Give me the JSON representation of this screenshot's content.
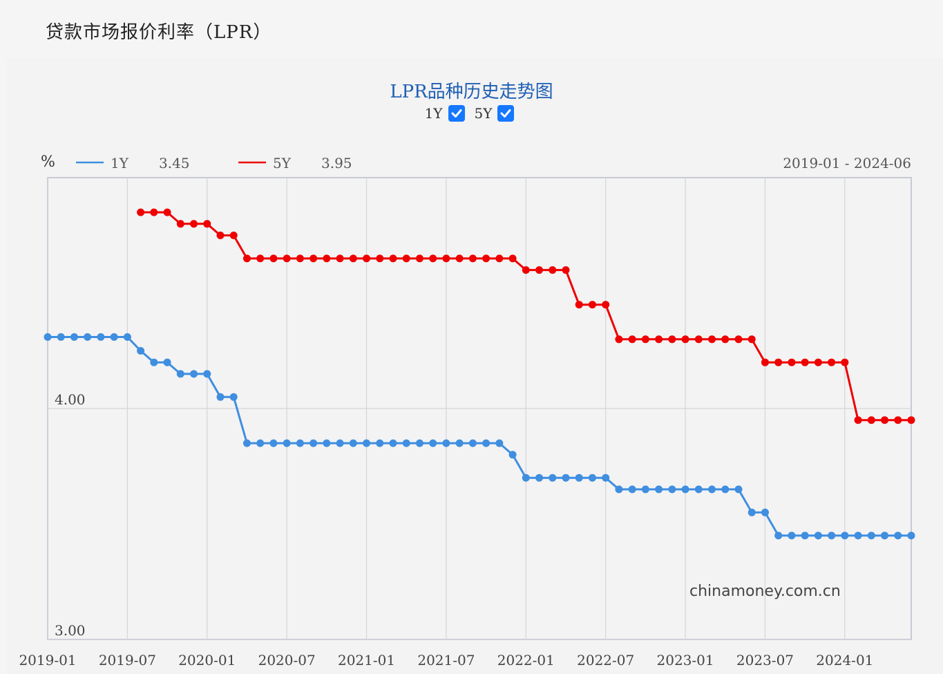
{
  "page": {
    "title": "贷款市场报价利率（LPR）"
  },
  "controls": {
    "toggles": [
      {
        "label": "1Y",
        "checked": true
      },
      {
        "label": "5Y",
        "checked": true
      }
    ]
  },
  "watermark": "chinamoney.com.cn",
  "colors": {
    "series_1y": "#3f8ee0",
    "series_5y": "#ee0000",
    "title": "#1f5fb4"
  },
  "chart_data": {
    "type": "line",
    "title": "LPR品种历史走势图",
    "ylabel": "%",
    "date_range": "2019-01 - 2024-06",
    "x_ticks": [
      "2019-01",
      "2019-07",
      "2020-01",
      "2020-07",
      "2021-01",
      "2021-07",
      "2022-01",
      "2022-07",
      "2023-01",
      "2023-07",
      "2024-01"
    ],
    "y_ticks": [
      "4.00",
      "3.00"
    ],
    "ylim": [
      3.0,
      5.0
    ],
    "xlim": [
      "2019-01",
      "2024-06"
    ],
    "legend": [
      {
        "name": "1Y",
        "value": "3.45"
      },
      {
        "name": "5Y",
        "value": "3.95"
      }
    ],
    "series": [
      {
        "name": "1Y",
        "x": [
          "2019-01",
          "2019-02",
          "2019-03",
          "2019-04",
          "2019-05",
          "2019-06",
          "2019-07",
          "2019-08",
          "2019-09",
          "2019-10",
          "2019-11",
          "2019-12",
          "2020-01",
          "2020-02",
          "2020-03",
          "2020-04",
          "2020-05",
          "2020-06",
          "2020-07",
          "2020-08",
          "2020-09",
          "2020-10",
          "2020-11",
          "2020-12",
          "2021-01",
          "2021-02",
          "2021-03",
          "2021-04",
          "2021-05",
          "2021-06",
          "2021-07",
          "2021-08",
          "2021-09",
          "2021-10",
          "2021-11",
          "2021-12",
          "2022-01",
          "2022-02",
          "2022-03",
          "2022-04",
          "2022-05",
          "2022-06",
          "2022-07",
          "2022-08",
          "2022-09",
          "2022-10",
          "2022-11",
          "2022-12",
          "2023-01",
          "2023-02",
          "2023-03",
          "2023-04",
          "2023-05",
          "2023-06",
          "2023-07",
          "2023-08",
          "2023-09",
          "2023-10",
          "2023-11",
          "2023-12",
          "2024-01",
          "2024-02",
          "2024-03",
          "2024-04",
          "2024-05",
          "2024-06"
        ],
        "values": [
          4.31,
          4.31,
          4.31,
          4.31,
          4.31,
          4.31,
          4.31,
          4.25,
          4.2,
          4.2,
          4.15,
          4.15,
          4.15,
          4.05,
          4.05,
          3.85,
          3.85,
          3.85,
          3.85,
          3.85,
          3.85,
          3.85,
          3.85,
          3.85,
          3.85,
          3.85,
          3.85,
          3.85,
          3.85,
          3.85,
          3.85,
          3.85,
          3.85,
          3.85,
          3.85,
          3.8,
          3.7,
          3.7,
          3.7,
          3.7,
          3.7,
          3.7,
          3.7,
          3.65,
          3.65,
          3.65,
          3.65,
          3.65,
          3.65,
          3.65,
          3.65,
          3.65,
          3.65,
          3.55,
          3.55,
          3.45,
          3.45,
          3.45,
          3.45,
          3.45,
          3.45,
          3.45,
          3.45,
          3.45,
          3.45,
          3.45
        ]
      },
      {
        "name": "5Y",
        "x": [
          "2019-08",
          "2019-09",
          "2019-10",
          "2019-11",
          "2019-12",
          "2020-01",
          "2020-02",
          "2020-03",
          "2020-04",
          "2020-05",
          "2020-06",
          "2020-07",
          "2020-08",
          "2020-09",
          "2020-10",
          "2020-11",
          "2020-12",
          "2021-01",
          "2021-02",
          "2021-03",
          "2021-04",
          "2021-05",
          "2021-06",
          "2021-07",
          "2021-08",
          "2021-09",
          "2021-10",
          "2021-11",
          "2021-12",
          "2022-01",
          "2022-02",
          "2022-03",
          "2022-04",
          "2022-05",
          "2022-06",
          "2022-07",
          "2022-08",
          "2022-09",
          "2022-10",
          "2022-11",
          "2022-12",
          "2023-01",
          "2023-02",
          "2023-03",
          "2023-04",
          "2023-05",
          "2023-06",
          "2023-07",
          "2023-08",
          "2023-09",
          "2023-10",
          "2023-11",
          "2023-12",
          "2024-01",
          "2024-02",
          "2024-03",
          "2024-04",
          "2024-05",
          "2024-06"
        ],
        "values": [
          4.85,
          4.85,
          4.85,
          4.8,
          4.8,
          4.8,
          4.75,
          4.75,
          4.65,
          4.65,
          4.65,
          4.65,
          4.65,
          4.65,
          4.65,
          4.65,
          4.65,
          4.65,
          4.65,
          4.65,
          4.65,
          4.65,
          4.65,
          4.65,
          4.65,
          4.65,
          4.65,
          4.65,
          4.65,
          4.6,
          4.6,
          4.6,
          4.6,
          4.45,
          4.45,
          4.45,
          4.3,
          4.3,
          4.3,
          4.3,
          4.3,
          4.3,
          4.3,
          4.3,
          4.3,
          4.3,
          4.3,
          4.2,
          4.2,
          4.2,
          4.2,
          4.2,
          4.2,
          4.2,
          3.95,
          3.95,
          3.95,
          3.95,
          3.95
        ]
      }
    ],
    "grid": true,
    "legend_position": "top-left"
  }
}
